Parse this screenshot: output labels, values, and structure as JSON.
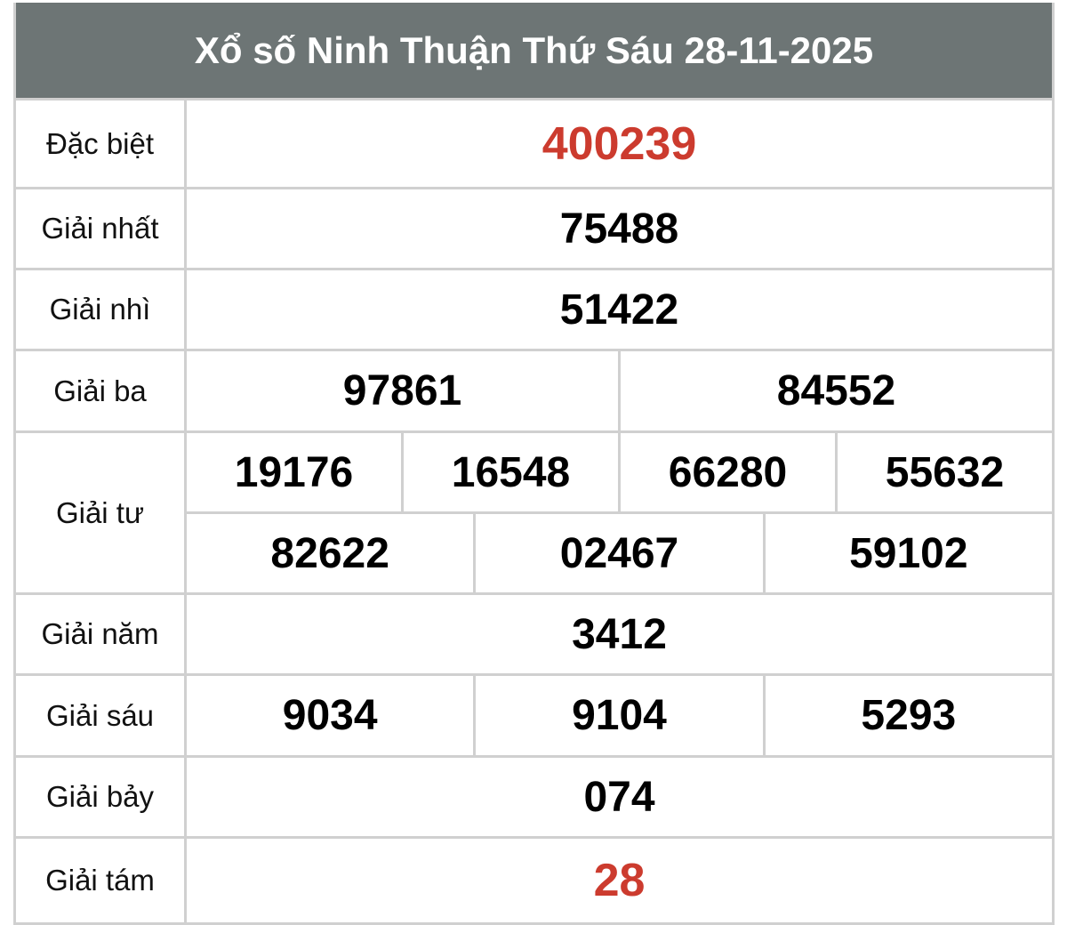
{
  "title": "Xổ số Ninh Thuận Thứ Sáu 28-11-2025",
  "accent_color": "#cc3b2e",
  "header_color": "#6d7575",
  "prizes": [
    {
      "label": "Đặc biệt",
      "rows": [
        [
          "400239"
        ]
      ],
      "highlight": true
    },
    {
      "label": "Giải nhất",
      "rows": [
        [
          "75488"
        ]
      ]
    },
    {
      "label": "Giải nhì",
      "rows": [
        [
          "51422"
        ]
      ]
    },
    {
      "label": "Giải ba",
      "rows": [
        [
          "97861",
          "84552"
        ]
      ]
    },
    {
      "label": "Giải tư",
      "rows": [
        [
          "19176",
          "16548",
          "66280",
          "55632"
        ],
        [
          "82622",
          "02467",
          "59102"
        ]
      ]
    },
    {
      "label": "Giải năm",
      "rows": [
        [
          "3412"
        ]
      ]
    },
    {
      "label": "Giải sáu",
      "rows": [
        [
          "9034",
          "9104",
          "5293"
        ]
      ]
    },
    {
      "label": "Giải bảy",
      "rows": [
        [
          "074"
        ]
      ]
    },
    {
      "label": "Giải tám",
      "rows": [
        [
          "28"
        ]
      ],
      "highlight": true
    }
  ]
}
